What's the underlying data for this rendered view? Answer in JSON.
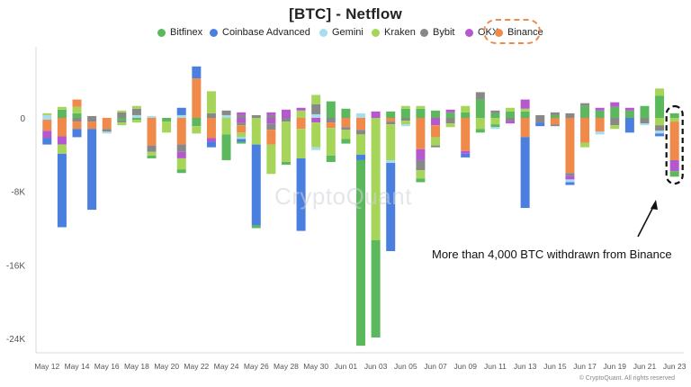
{
  "chart_data": {
    "type": "bar",
    "stacked": true,
    "title": "[BTC] - Netflow",
    "ytick_labels": [
      "0",
      "-8K",
      "-16K",
      "-24K"
    ],
    "yticks": [
      0,
      -8000,
      -16000,
      -24000
    ],
    "ylim": [
      -24500,
      6000
    ],
    "xtick_labels": [
      "May 12",
      "May 14",
      "May 16",
      "May 18",
      "May 20",
      "May 22",
      "May 24",
      "May 26",
      "May 28",
      "May 30",
      "Jun 01",
      "Jun 03",
      "Jun 05",
      "Jun 07",
      "Jun 09",
      "Jun 11",
      "Jun 13",
      "Jun 15",
      "Jun 17",
      "Jun 19",
      "Jun 21",
      "Jun 23"
    ],
    "grid": false,
    "legend_position": "top-center",
    "series_names": [
      "Bitfinex",
      "Coinbase Advanced",
      "Gemini",
      "Kraken",
      "Bybit",
      "OKX",
      "Binance"
    ],
    "colors": {
      "Bitfinex": "#5cb85c",
      "Coinbase Advanced": "#4a7fe0",
      "Gemini": "#a8dcef",
      "Kraken": "#a7d55a",
      "Bybit": "#888888",
      "OKX": "#b558d0",
      "Binance": "#f08a4b"
    },
    "days": [
      {
        "date": "May 12",
        "pos": {
          "Gemini": 300,
          "Kraken": 200
        },
        "neg": {
          "Gemini": -200,
          "Binance": -1200,
          "OKX": -800,
          "Coinbase Advanced": -700
        }
      },
      {
        "date": "May 13",
        "pos": {
          "Bitfinex": 900,
          "Kraken": 300
        },
        "neg": {
          "Binance": -2000,
          "OKX": -900,
          "Kraken": -1000,
          "Coinbase Advanced": -8000
        }
      },
      {
        "date": "May 14",
        "pos": {
          "Bitfinex": 500,
          "Kraken": 700,
          "Binance": 800
        },
        "neg": {
          "Bybit": -400,
          "Binance": -800,
          "Coinbase Advanced": -900
        }
      },
      {
        "date": "May 15",
        "pos": {
          "Bybit": 200
        },
        "neg": {
          "Bybit": -400,
          "Binance": -800,
          "Coinbase Advanced": -8800
        }
      },
      {
        "date": "May 16",
        "pos": {},
        "neg": {
          "Binance": -1200,
          "Bybit": -300,
          "Gemini": -200
        }
      },
      {
        "date": "May 17",
        "pos": {
          "Bybit": 600,
          "Kraken": 200
        },
        "neg": {
          "Bitfinex": -300,
          "Bybit": -200,
          "Kraken": -300
        }
      },
      {
        "date": "May 18",
        "pos": {
          "Gemini": 300,
          "Bybit": 700,
          "Kraken": 300
        },
        "neg": {
          "Bitfinex": -200,
          "Kraken": -300
        }
      },
      {
        "date": "May 19",
        "pos": {
          "Gemini": 200
        },
        "neg": {
          "Binance": -3000,
          "Bybit": -700,
          "Kraken": -400,
          "Bitfinex": -300
        }
      },
      {
        "date": "May 20",
        "pos": {},
        "neg": {
          "Bitfinex": -400,
          "Kraken": -1200
        }
      },
      {
        "date": "May 21",
        "pos": {
          "Gemini": 300,
          "Coinbase Advanced": 800
        },
        "neg": {
          "Binance": -2900,
          "Bybit": -800,
          "OKX": -700,
          "Kraken": -1200,
          "Bitfinex": -400
        }
      },
      {
        "date": "May 22",
        "pos": {
          "Binance": 4300,
          "Coinbase Advanced": 1300
        },
        "neg": {
          "Bitfinex": -900,
          "Kraken": -800
        }
      },
      {
        "date": "May 23",
        "pos": {
          "Bybit": 500,
          "Kraken": 2400
        },
        "neg": {
          "Binance": -2200,
          "OKX": -400,
          "Coinbase Advanced": -600
        }
      },
      {
        "date": "May 24",
        "pos": {
          "Gemini": 300,
          "Bybit": 500
        },
        "neg": {
          "Kraken": -1800,
          "Bitfinex": -2800
        }
      },
      {
        "date": "May 25",
        "pos": {
          "Bybit": 300,
          "OKX": 300
        },
        "neg": {
          "OKX": -500,
          "Bybit": -300,
          "Binance": -800,
          "Kraken": -500,
          "Gemini": -200,
          "Coinbase Advanced": -300,
          "Bitfinex": -200
        }
      },
      {
        "date": "May 26",
        "pos": {
          "Bybit": 300
        },
        "neg": {
          "Kraken": -2900,
          "Coinbase Advanced": -8800,
          "Bitfinex": -300
        }
      },
      {
        "date": "May 27",
        "pos": {
          "Bybit": 300,
          "OKX": 300
        },
        "neg": {
          "OKX": -600,
          "Bybit": -700,
          "Binance": -1600,
          "Kraken": -3200
        }
      },
      {
        "date": "May 28",
        "pos": {
          "OKX": 900
        },
        "neg": {
          "Bybit": -400,
          "Kraken": -4400,
          "Bitfinex": -300
        }
      },
      {
        "date": "May 29",
        "pos": {
          "Kraken": 800,
          "OKX": 300
        },
        "neg": {
          "Binance": -1200,
          "Kraken": -3200,
          "Coinbase Advanced": -7900
        }
      },
      {
        "date": "May 30",
        "pos": {
          "Gemini": 400,
          "Bybit": 1100,
          "Kraken": 1000
        },
        "neg": {
          "OKX": -500,
          "Kraken": -2700,
          "Gemini": -300
        }
      },
      {
        "date": "May 31",
        "pos": {
          "Bitfinex": 1800
        },
        "neg": {
          "Bybit": -500,
          "Binance": -600,
          "Kraken": -3000,
          "Bitfinex": -700
        }
      },
      {
        "date": "Jun 01",
        "pos": {
          "Bitfinex": 1000
        },
        "neg": {
          "Binance": -1000,
          "Bybit": -300,
          "Kraken": -1000,
          "Bitfinex": -500
        }
      },
      {
        "date": "Jun 02",
        "pos": {
          "Gemini": 500
        },
        "neg": {
          "Binance": -1300,
          "Bybit": -500,
          "Kraken": -2200,
          "Coinbase Advanced": -600,
          "Bitfinex": -20200
        }
      },
      {
        "date": "Jun 03",
        "pos": {
          "OKX": 700
        },
        "neg": {
          "Kraken": -13300,
          "Bitfinex": -10600
        }
      },
      {
        "date": "Jun 04",
        "pos": {
          "Bitfinex": 700
        },
        "neg": {
          "Binance": -400,
          "Bybit": -300,
          "Kraken": -3900,
          "Gemini": -300,
          "Coinbase Advanced": -9600
        }
      },
      {
        "date": "Jun 05",
        "pos": {
          "Bitfinex": 1000,
          "Kraken": 300
        },
        "neg": {
          "Bybit": -300,
          "Kraken": -400,
          "Gemini": -200
        }
      },
      {
        "date": "Jun 06",
        "pos": {
          "Bitfinex": 1000,
          "Kraken": 300
        },
        "neg": {
          "Binance": -3400,
          "OKX": -1200,
          "Bybit": -1100,
          "Kraken": -900,
          "Bitfinex": -400
        }
      },
      {
        "date": "Jun 07",
        "pos": {
          "Bitfinex": 800
        },
        "neg": {
          "OKX": -800,
          "Binance": -1300,
          "Kraken": -900,
          "Bybit": -200
        }
      },
      {
        "date": "Jun 08",
        "pos": {
          "Bitfinex": 600,
          "OKX": 300
        },
        "neg": {
          "Bybit": -600,
          "Kraken": -400
        }
      },
      {
        "date": "Jun 09",
        "pos": {
          "Bitfinex": 600,
          "Kraken": 700
        },
        "neg": {
          "Binance": -3600,
          "OKX": -300,
          "Coinbase Advanced": -400
        }
      },
      {
        "date": "Jun 10",
        "pos": {
          "Bitfinex": 2000,
          "Bybit": 800
        },
        "neg": {
          "Kraken": -1200,
          "Bitfinex": -400
        }
      },
      {
        "date": "Jun 11",
        "pos": {
          "Bitfinex": 500,
          "Bybit": 300
        },
        "neg": {
          "Kraken": -700,
          "Bitfinex": -300,
          "Gemini": -200
        }
      },
      {
        "date": "Jun 12",
        "pos": {
          "Bitfinex": 700,
          "Kraken": 400
        },
        "neg": {
          "Bybit": -300,
          "OKX": -300
        }
      },
      {
        "date": "Jun 13",
        "pos": {
          "Bitfinex": 700,
          "Kraken": 300,
          "OKX": 1000
        },
        "neg": {
          "Binance": -2100,
          "Coinbase Advanced": -7700
        }
      },
      {
        "date": "Jun 14",
        "pos": {
          "Bybit": 300
        },
        "neg": {
          "Bybit": -500,
          "Coinbase Advanced": -400
        }
      },
      {
        "date": "Jun 15",
        "pos": {
          "Bitfinex": 300,
          "Bybit": 300
        },
        "neg": {
          "Binance": -700,
          "Bybit": -200
        }
      },
      {
        "date": "Jun 16",
        "pos": {
          "Bybit": 500
        },
        "neg": {
          "Binance": -6000,
          "Bybit": -300,
          "OKX": -400,
          "Gemini": -300,
          "Coinbase Advanced": -300
        }
      },
      {
        "date": "Jun 17",
        "pos": {
          "Bitfinex": 1300,
          "Bybit": 300
        },
        "neg": {
          "Binance": -2700,
          "Kraken": -500
        }
      },
      {
        "date": "Jun 18",
        "pos": {
          "Bitfinex": 800,
          "OKX": 300
        },
        "neg": {
          "Binance": -1500,
          "Gemini": -300
        }
      },
      {
        "date": "Jun 19",
        "pos": {
          "Bitfinex": 1200,
          "OKX": 500
        },
        "neg": {
          "Bybit": -800,
          "Kraken": -400
        }
      },
      {
        "date": "Jun 20",
        "pos": {
          "Bitfinex": 800,
          "OKX": 300
        },
        "neg": {
          "Coinbase Advanced": -1600
        }
      },
      {
        "date": "Jun 21",
        "pos": {
          "Bitfinex": 1300
        },
        "neg": {
          "Bybit": -600,
          "Gemini": -200
        }
      },
      {
        "date": "Jun 22",
        "pos": {
          "Bitfinex": 2400,
          "Kraken": 800
        },
        "neg": {
          "Kraken": -800,
          "Bybit": -600,
          "Gemini": -300,
          "Coinbase Advanced": -300
        }
      },
      {
        "date": "Jun 23",
        "pos": {
          "Bitfinex": 500
        },
        "neg": {
          "Kraken": -400,
          "Binance": -4200,
          "OKX": -1200,
          "Kraken ": 0,
          "Bitfinex": -600
        }
      }
    ]
  },
  "annotation": "More than 4,000 BTC withdrawn from Binance",
  "watermark": "CryptoQuant",
  "copyright": "© CryptoQuant. All rights reserved"
}
